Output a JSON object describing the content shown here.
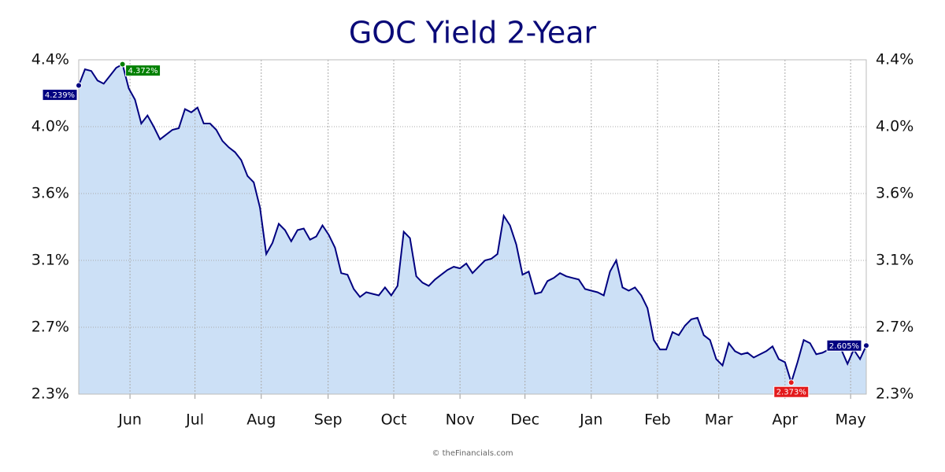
{
  "chart_data": {
    "type": "area",
    "title": "GOC Yield 2-Year",
    "series": [
      {
        "color": "#000080",
        "fill": "#cce0f6",
        "values": [
          4.239,
          4.34,
          4.33,
          4.27,
          4.25,
          4.3,
          4.35,
          4.372,
          4.22,
          4.15,
          4.0,
          4.05,
          3.98,
          3.9,
          3.93,
          3.96,
          3.97,
          4.09,
          4.07,
          4.1,
          4.0,
          4.0,
          3.96,
          3.89,
          3.85,
          3.82,
          3.77,
          3.67,
          3.63,
          3.47,
          3.18,
          3.25,
          3.37,
          3.33,
          3.26,
          3.33,
          3.34,
          3.27,
          3.29,
          3.36,
          3.3,
          3.22,
          3.06,
          3.05,
          2.96,
          2.91,
          2.94,
          2.93,
          2.92,
          2.97,
          2.92,
          2.98,
          3.32,
          3.28,
          3.04,
          3.0,
          2.98,
          3.02,
          3.05,
          3.08,
          3.1,
          3.09,
          3.12,
          3.06,
          3.1,
          3.14,
          3.15,
          3.18,
          3.42,
          3.36,
          3.24,
          3.05,
          3.07,
          2.93,
          2.94,
          3.01,
          3.03,
          3.06,
          3.04,
          3.03,
          3.02,
          2.96,
          2.95,
          2.94,
          2.92,
          3.07,
          3.14,
          2.97,
          2.95,
          2.97,
          2.92,
          2.84,
          2.64,
          2.58,
          2.58,
          2.69,
          2.67,
          2.73,
          2.77,
          2.78,
          2.67,
          2.64,
          2.52,
          2.48,
          2.62,
          2.57,
          2.55,
          2.56,
          2.53,
          2.55,
          2.57,
          2.6,
          2.52,
          2.5,
          2.373,
          2.5,
          2.64,
          2.62,
          2.55,
          2.56,
          2.58,
          2.6,
          2.58,
          2.49,
          2.58,
          2.52,
          2.605
        ]
      }
    ],
    "xlim": [
      0,
      126
    ],
    "xticks": [
      {
        "value": 8.2,
        "label": "Jun"
      },
      {
        "value": 18.6,
        "label": "Jul"
      },
      {
        "value": 29.2,
        "label": "Aug"
      },
      {
        "value": 39.9,
        "label": "Sep"
      },
      {
        "value": 50.4,
        "label": "Oct"
      },
      {
        "value": 61.0,
        "label": "Nov"
      },
      {
        "value": 71.4,
        "label": "Dec"
      },
      {
        "value": 82.0,
        "label": "Jan"
      },
      {
        "value": 92.6,
        "label": "Feb"
      },
      {
        "value": 102.4,
        "label": "Mar"
      },
      {
        "value": 113.0,
        "label": "Apr"
      },
      {
        "value": 123.5,
        "label": "May"
      }
    ],
    "ylim": [
      2.3,
      4.4
    ],
    "yticks": [
      {
        "value": 2.3,
        "label": "2.3%"
      },
      {
        "value": 2.72,
        "label": "2.7%"
      },
      {
        "value": 3.14,
        "label": "3.1%"
      },
      {
        "value": 3.56,
        "label": "3.6%"
      },
      {
        "value": 3.98,
        "label": "4.0%"
      },
      {
        "value": 4.4,
        "label": "4.4%"
      }
    ],
    "grid": true,
    "callouts": [
      {
        "x": 0,
        "label": "4.239%",
        "color": "#000080"
      },
      {
        "x": 7,
        "label": "4.372%",
        "color": "#008000"
      },
      {
        "x": 114,
        "label": "2.373%",
        "color": "#e31a1c"
      },
      {
        "x": 126,
        "label": "2.605%",
        "color": "#000080"
      }
    ],
    "footer": "© theFinancials.com"
  }
}
